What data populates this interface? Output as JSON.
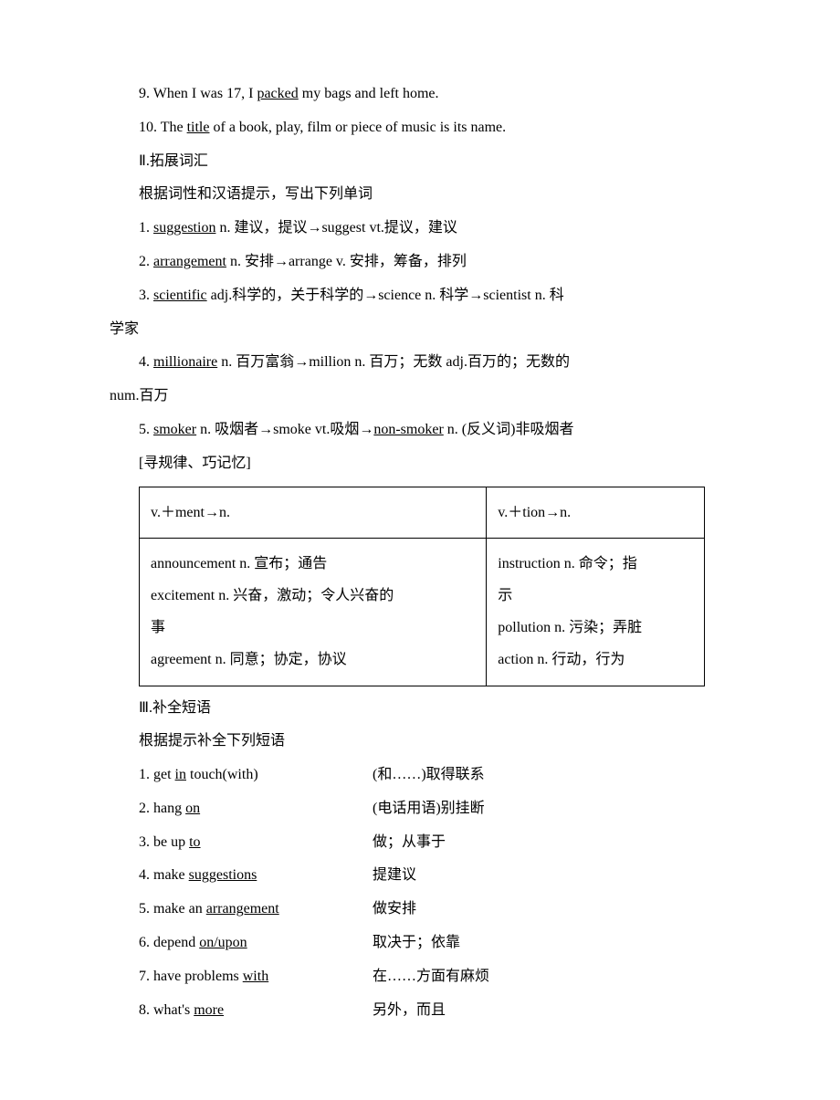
{
  "sentences": {
    "s9_a": "9. When I was 17, I ",
    "s9_u": "packed",
    "s9_b": " my bags and left home.",
    "s10_a": "10. The ",
    "s10_u": "title",
    "s10_b": " of a book, play, film or piece of music is its name."
  },
  "section2": {
    "heading": "Ⅱ.拓展词汇",
    "sub": "根据词性和汉语提示，写出下列单词",
    "i1_a": "1. ",
    "i1_u": "suggestion",
    "i1_b": " n. 建议，提议→suggest vt.提议，建议",
    "i2_a": "2. ",
    "i2_u": "arrangement",
    "i2_b": " n. 安排→arrange v. 安排，筹备，排列",
    "i3_a": "3. ",
    "i3_u": "scientific",
    "i3_b": " adj.科学的，关于科学的→science n. 科学→scientist n. 科",
    "i3_c": "学家",
    "i4_a": "4. ",
    "i4_u": "millionaire",
    "i4_b": " n. 百万富翁→million n. 百万；无数 adj.百万的；无数的",
    "i4_c": "num.百万",
    "i5_a": "5. ",
    "i5_u": "smoker",
    "i5_b": " n. 吸烟者→smoke vt.吸烟→",
    "i5_u2": "non-smoker",
    "i5_c": " n. (反义词)非吸烟者",
    "tip": "[寻规律、巧记忆]"
  },
  "table": {
    "h1": "v.＋ment→n.",
    "h2": "v.＋tion→n.",
    "c1_1": "announcement n. 宣布；通告",
    "c1_2": "excitement n. 兴奋，激动；令人兴奋的",
    "c1_3": "事",
    "c1_4": "agreement n. 同意；协定，协议",
    "c2_1": "instruction n. 命令；指",
    "c2_2": "示",
    "c2_3": "pollution n. 污染；弄脏",
    "c2_4": "action n. 行动，行为"
  },
  "section3": {
    "heading": "Ⅲ.补全短语",
    "sub": "根据提示补全下列短语",
    "p1_a": "1. get ",
    "p1_u": "in",
    "p1_b": " touch(with)",
    "p1_r": "(和……)取得联系",
    "p2_a": "2. hang ",
    "p2_u": "on",
    "p2_r": "(电话用语)别挂断",
    "p3_a": "3. be up ",
    "p3_u": "to",
    "p3_r": "做；从事于",
    "p4_a": "4. make ",
    "p4_u": "suggestions",
    "p4_r": "提建议",
    "p5_a": "5. make an ",
    "p5_u": "arrangement",
    "p5_r": "做安排",
    "p6_a": "6. depend ",
    "p6_u": "on/upon",
    "p6_r": "取决于；依靠",
    "p7_a": "7. have problems ",
    "p7_u": "with",
    "p7_r": "在……方面有麻烦",
    "p8_a": "8. what's ",
    "p8_u": "more",
    "p8_r": "另外，而且"
  }
}
